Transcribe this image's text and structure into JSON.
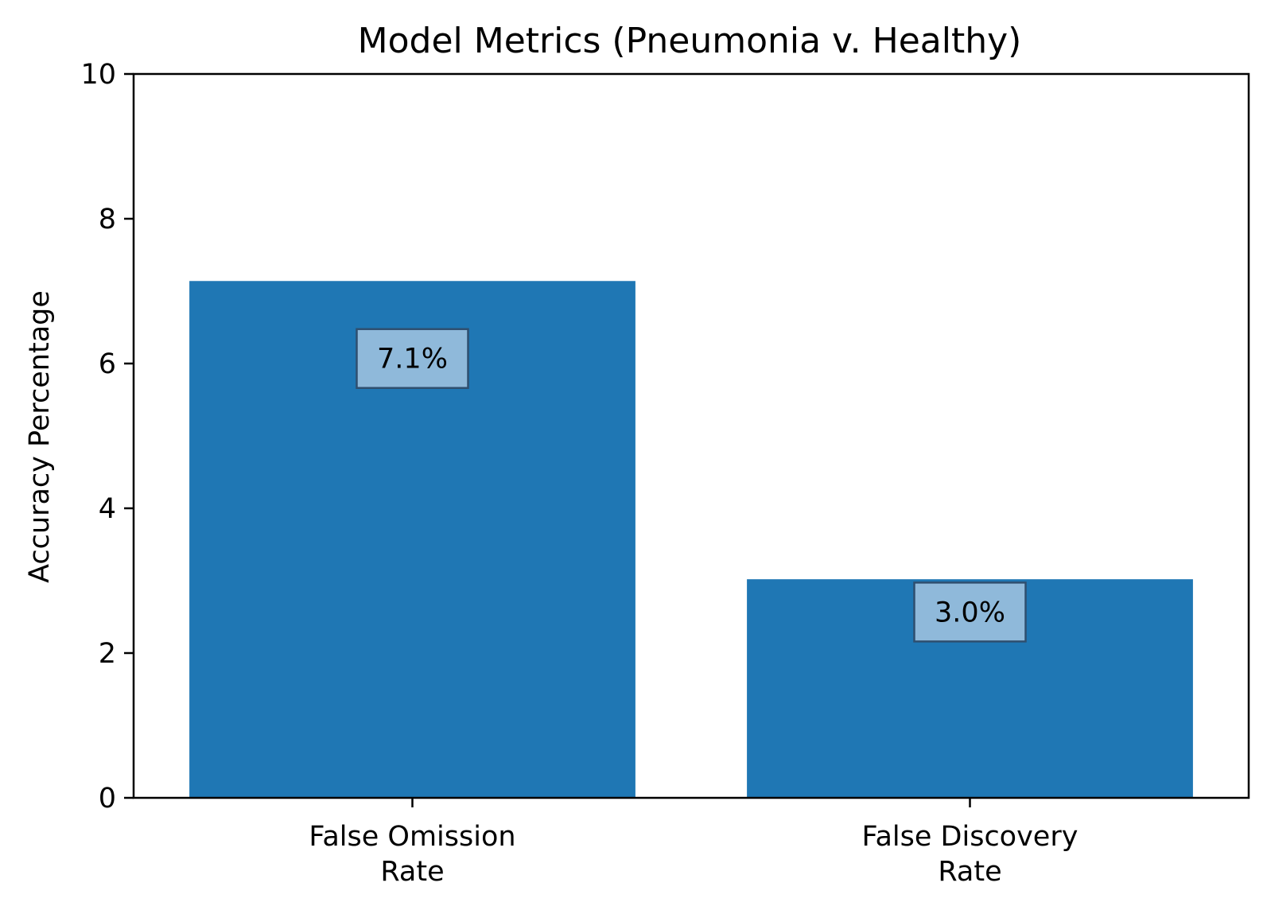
{
  "chart_data": {
    "type": "bar",
    "title": "Model Metrics (Pneumonia v. Healthy)",
    "xlabel": "",
    "ylabel": "Accuracy Percentage",
    "categories": [
      [
        "False Omission",
        "Rate"
      ],
      [
        "False Discovery",
        "Rate"
      ]
    ],
    "values": [
      7.14,
      3.02
    ],
    "value_labels": [
      "7.1%",
      "3.0%"
    ],
    "label_position_ratio": 0.85,
    "ylim": [
      0,
      10
    ],
    "yticks": [
      0,
      2,
      4,
      6,
      8,
      10
    ],
    "ytick_labels": [
      "0",
      "2",
      "4",
      "6",
      "8",
      "10"
    ],
    "grid": false,
    "legend": "none",
    "colors": {
      "bar": "#1f77b4",
      "label_box_fill": "#8fb9da",
      "label_box_stroke": "#2f4f6f",
      "axis": "#000000"
    }
  }
}
